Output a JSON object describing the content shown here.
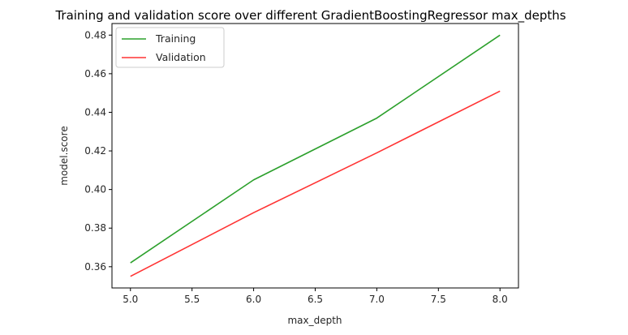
{
  "chart_data": {
    "type": "line",
    "title": "Training and validation score over different GradientBoostingRegressor max_depths",
    "xlabel": "max_depth",
    "ylabel": "model.score",
    "x": [
      5.0,
      6.0,
      7.0,
      8.0
    ],
    "xlim": [
      4.85,
      8.15
    ],
    "ylim": [
      0.349,
      0.486
    ],
    "xticks": [
      5.0,
      5.5,
      6.0,
      6.5,
      7.0,
      7.5,
      8.0
    ],
    "xtick_labels": [
      "5.0",
      "5.5",
      "6.0",
      "6.5",
      "7.0",
      "7.5",
      "8.0"
    ],
    "yticks": [
      0.36,
      0.38,
      0.4,
      0.42,
      0.44,
      0.46,
      0.48
    ],
    "ytick_labels": [
      "0.36",
      "0.38",
      "0.40",
      "0.42",
      "0.44",
      "0.46",
      "0.48"
    ],
    "grid": false,
    "legend_position": "top-left",
    "series": [
      {
        "name": "Training",
        "color": "#2ca02c",
        "values": [
          0.362,
          0.405,
          0.437,
          0.48
        ]
      },
      {
        "name": "Validation",
        "color": "#ff3333",
        "values": [
          0.355,
          0.388,
          0.419,
          0.451
        ]
      }
    ]
  }
}
